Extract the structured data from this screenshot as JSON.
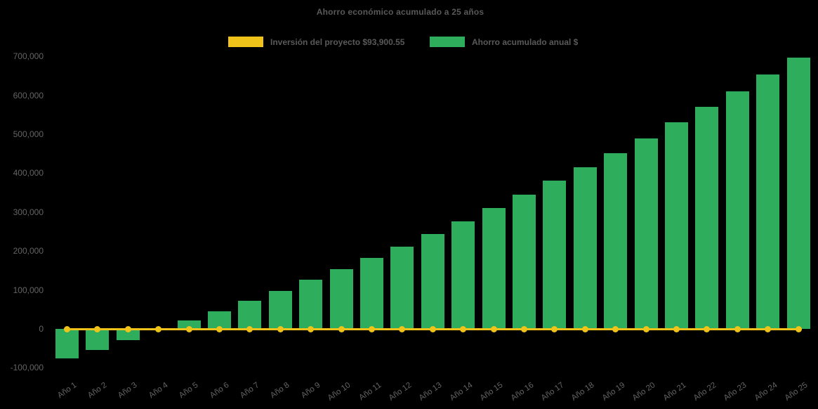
{
  "page": {
    "background": "#000000"
  },
  "chart_data": {
    "type": "bar",
    "title": "Ahorro económico acumulado a 25 años",
    "categories": [
      "Año 1",
      "Año 2",
      "Año 3",
      "Año 4",
      "Año 5",
      "Año 6",
      "Año 7",
      "Año 8",
      "Año 9",
      "Año 10",
      "Año 11",
      "Año 12",
      "Año 13",
      "Año 14",
      "Año 15",
      "Año 16",
      "Año 17",
      "Año 18",
      "Año 19",
      "Año 20",
      "Año 21",
      "Año 22",
      "Año 23",
      "Año 24",
      "Año 25"
    ],
    "series": [
      {
        "name": "Inversión del proyecto $93,900.55",
        "type": "line",
        "color": "#EFC319",
        "marker": "circle",
        "value_displayed": 0,
        "note": "flat line with circular markers drawn at the 0 level of the value axis"
      },
      {
        "name": "Ahorro acumulado anual $",
        "type": "bar",
        "color": "#2EAD5C",
        "values": [
          -76000,
          -54000,
          -29000,
          -4000,
          21000,
          45000,
          72000,
          97000,
          126000,
          154000,
          183000,
          212000,
          243000,
          276000,
          310000,
          345000,
          380000,
          416000,
          452000,
          490000,
          530000,
          570000,
          611000,
          654000,
          697000
        ]
      }
    ],
    "ylim": [
      -100000,
      700000
    ],
    "ytick_step": 100000,
    "yticks": [
      700000,
      600000,
      500000,
      400000,
      300000,
      200000,
      100000,
      0,
      -100000
    ],
    "grid": false,
    "legend_position": "top",
    "x_labels_rotation_deg": -35,
    "text_color": "#595959",
    "tick_color": "#646464"
  }
}
